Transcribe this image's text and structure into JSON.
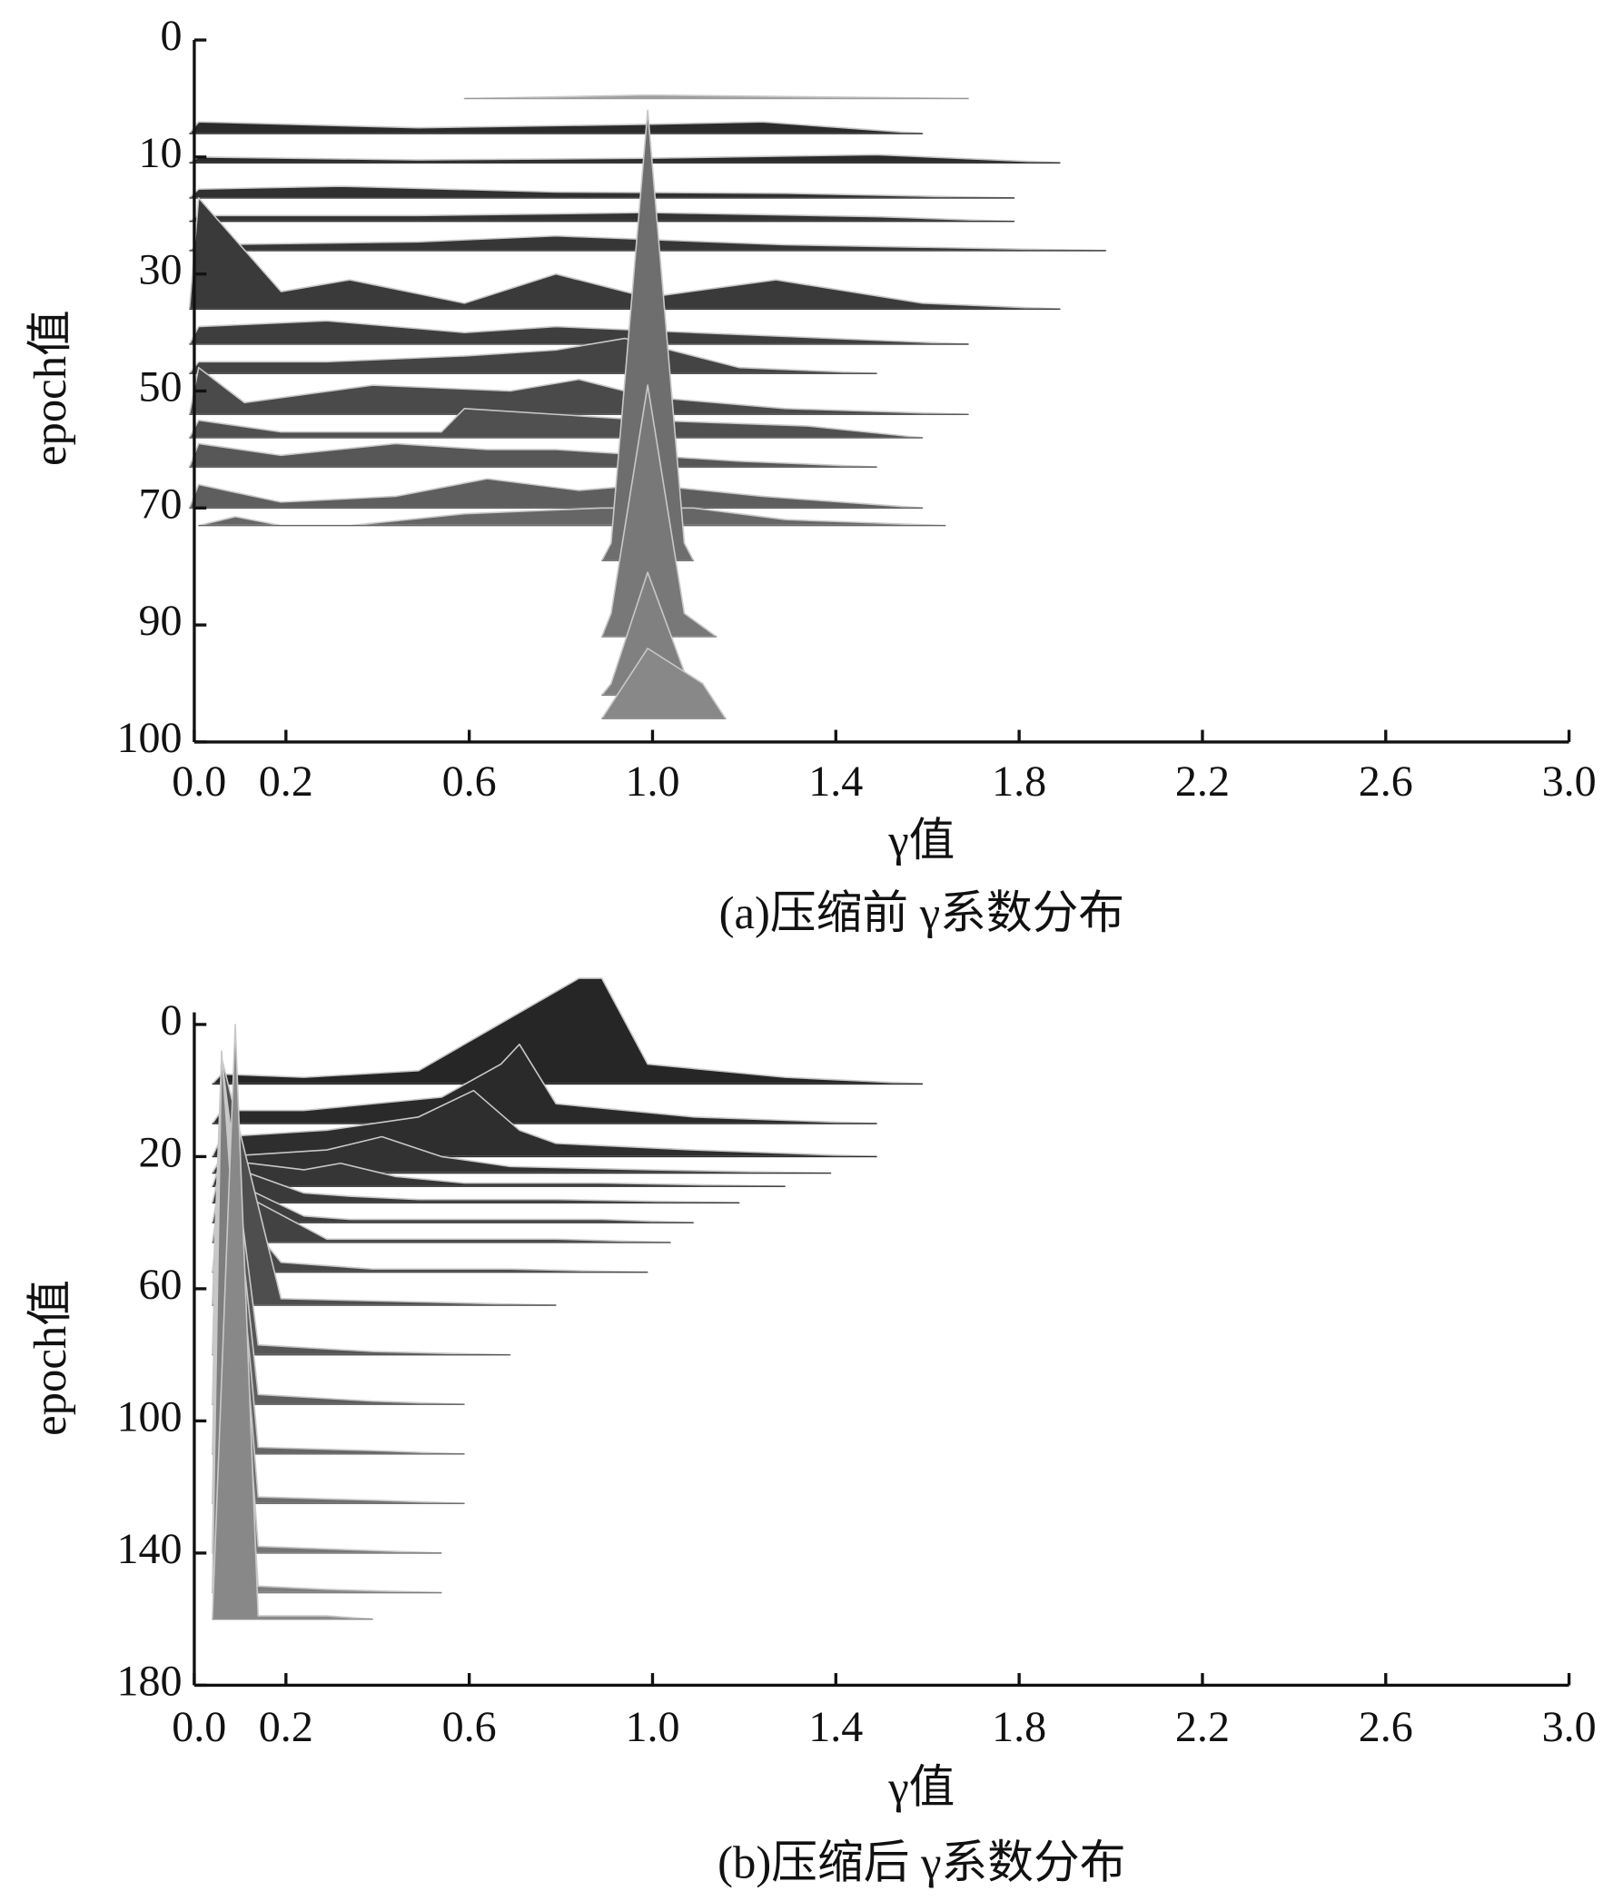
{
  "chart_data": [
    {
      "type": "ridgeline",
      "xlabel": "γ值",
      "ylabel": "epoch值",
      "caption": "(a)压缩前 γ系数分布",
      "xlim": [
        0,
        3.0
      ],
      "xticks": [
        {
          "value": 0,
          "label": "0.0"
        },
        0.2,
        0.6,
        {
          "value": 1,
          "label": "1.0"
        },
        1.4,
        1.8,
        2.2,
        2.6,
        {
          "value": 3,
          "label": "3.0"
        }
      ],
      "ylim": [
        0,
        100
      ],
      "yticks": [
        0,
        10,
        30,
        50,
        70,
        90,
        100
      ],
      "series": [
        {
          "epoch": 5,
          "color": "#9a9a9a",
          "x": [
            0.6,
            1.0,
            1.7
          ],
          "values": [
            0,
            0.3,
            0
          ]
        },
        {
          "epoch": 8,
          "color": "#2b2b2b",
          "x": [
            0.0,
            0.02,
            0.5,
            1.0,
            1.25,
            1.6
          ],
          "values": [
            0,
            1,
            0.5,
            0.8,
            1,
            0
          ]
        },
        {
          "epoch": 11,
          "color": "#2b2b2b",
          "x": [
            0.0,
            0.02,
            0.5,
            1.0,
            1.5,
            1.9
          ],
          "values": [
            0,
            1,
            0.5,
            0.8,
            1.2,
            0
          ]
        },
        {
          "epoch": 17,
          "color": "#303030",
          "x": [
            0.0,
            0.02,
            0.33,
            0.8,
            1.3,
            1.8
          ],
          "values": [
            0,
            1.5,
            2,
            1,
            0.8,
            0
          ]
        },
        {
          "epoch": 21,
          "color": "#333333",
          "x": [
            0.0,
            0.02,
            0.5,
            1.0,
            1.5,
            1.8
          ],
          "values": [
            0,
            1,
            1,
            1.5,
            0.8,
            0
          ]
        },
        {
          "epoch": 26,
          "color": "#363636",
          "x": [
            0.0,
            0.02,
            0.5,
            0.8,
            1.3,
            2.0
          ],
          "values": [
            0,
            1,
            1.5,
            2.5,
            1,
            0
          ]
        },
        {
          "epoch": 36,
          "color": "#3a3a3a",
          "x": [
            0.0,
            0.02,
            0.2,
            0.35,
            0.6,
            0.8,
            1.0,
            1.28,
            1.6,
            1.9
          ],
          "values": [
            0,
            19,
            3,
            5,
            1,
            6,
            2,
            5,
            1,
            0
          ]
        },
        {
          "epoch": 42,
          "color": "#3e3e3e",
          "x": [
            0.0,
            0.02,
            0.3,
            0.6,
            0.8,
            1.1,
            1.4,
            1.7
          ],
          "values": [
            0,
            3,
            4,
            2,
            3,
            2,
            1,
            0
          ]
        },
        {
          "epoch": 47,
          "color": "#444444",
          "x": [
            0.0,
            0.02,
            0.3,
            0.6,
            0.8,
            0.95,
            1.2,
            1.5
          ],
          "values": [
            0,
            2,
            2,
            3,
            4,
            6,
            1,
            0
          ]
        },
        {
          "epoch": 54,
          "color": "#4a4a4a",
          "x": [
            0.0,
            0.02,
            0.12,
            0.4,
            0.7,
            0.85,
            1.0,
            1.3,
            1.7
          ],
          "values": [
            0,
            8,
            2,
            5,
            4,
            6,
            3,
            1,
            0
          ]
        },
        {
          "epoch": 58,
          "color": "#505050",
          "x": [
            0.0,
            0.02,
            0.2,
            0.55,
            0.6,
            0.8,
            1.0,
            1.35,
            1.6
          ],
          "values": [
            0,
            3,
            1,
            1,
            5,
            4,
            3,
            2,
            0
          ]
        },
        {
          "epoch": 63,
          "color": "#575757",
          "x": [
            0.0,
            0.02,
            0.2,
            0.45,
            0.65,
            0.8,
            1.0,
            1.2,
            1.5
          ],
          "values": [
            0,
            4,
            2,
            4,
            3,
            3,
            2,
            1,
            0
          ]
        },
        {
          "epoch": 70,
          "color": "#5e5e5e",
          "x": [
            0.0,
            0.02,
            0.2,
            0.45,
            0.65,
            0.85,
            1.0,
            1.25,
            1.6
          ],
          "values": [
            0,
            4,
            1,
            2,
            5,
            3,
            4,
            2,
            0
          ]
        },
        {
          "epoch": 73,
          "color": "#666666",
          "x": [
            0.02,
            0.1,
            0.2,
            0.35,
            0.6,
            0.9,
            1.1,
            1.3,
            1.65
          ],
          "values": [
            0,
            1.5,
            0,
            0,
            2,
            3,
            3,
            1,
            0
          ]
        },
        {
          "epoch": 79,
          "color": "#6e6e6e",
          "x": [
            0.9,
            0.92,
            1.0,
            1.08,
            1.1
          ],
          "values": [
            0,
            3,
            73,
            3,
            0
          ]
        },
        {
          "epoch": 91,
          "color": "#787878",
          "x": [
            0.9,
            0.92,
            1.0,
            1.08,
            1.15
          ],
          "values": [
            0,
            3,
            42,
            3,
            0
          ]
        },
        {
          "epoch": 96,
          "color": "#808080",
          "x": [
            0.9,
            0.92,
            1.0,
            1.08,
            1.1
          ],
          "values": [
            0,
            1,
            15,
            2,
            0
          ]
        },
        {
          "epoch": 98,
          "color": "#888888",
          "x": [
            0.9,
            1.0,
            1.12,
            1.17
          ],
          "values": [
            0,
            6,
            3,
            0
          ]
        }
      ]
    },
    {
      "type": "ridgeline",
      "xlabel": "γ值",
      "ylabel": "epoch值",
      "caption": "(b)压缩后 γ系数分布",
      "xlim": [
        0,
        3.0
      ],
      "xticks": [
        {
          "value": 0,
          "label": "0.0"
        },
        0.2,
        0.6,
        {
          "value": 1,
          "label": "1.0"
        },
        1.4,
        1.8,
        2.2,
        2.6,
        {
          "value": 3,
          "label": "3.0"
        }
      ],
      "ylim": [
        0,
        180
      ],
      "yticks": [
        0,
        20,
        60,
        100,
        140,
        180
      ],
      "series": [
        {
          "epoch": 9,
          "color": "#262626",
          "x": [
            0.05,
            0.07,
            0.25,
            0.5,
            0.85,
            0.9,
            1.0,
            1.3,
            1.6
          ],
          "values": [
            0,
            1.5,
            1,
            2,
            16,
            16,
            3,
            1,
            0
          ]
        },
        {
          "epoch": 15,
          "color": "#2a2a2a",
          "x": [
            0.05,
            0.07,
            0.25,
            0.55,
            0.68,
            0.72,
            0.8,
            1.1,
            1.5
          ],
          "values": [
            0,
            2,
            2,
            4,
            9,
            12,
            3,
            1,
            0
          ]
        },
        {
          "epoch": 20,
          "color": "#2e2e2e",
          "x": [
            0.05,
            0.07,
            0.3,
            0.5,
            0.62,
            0.72,
            0.8,
            1.1,
            1.5
          ],
          "values": [
            0,
            3,
            4,
            6,
            10,
            4,
            2,
            1,
            0
          ]
        },
        {
          "epoch": 25,
          "color": "#323232",
          "x": [
            0.05,
            0.07,
            0.3,
            0.42,
            0.55,
            0.7,
            1.0,
            1.4
          ],
          "values": [
            0,
            5,
            6,
            8,
            5,
            2,
            1,
            0
          ]
        },
        {
          "epoch": 29,
          "color": "#363636",
          "x": [
            0.05,
            0.07,
            0.25,
            0.33,
            0.45,
            0.6,
            0.9,
            1.3
          ],
          "values": [
            0,
            8,
            5,
            7,
            3,
            1,
            1,
            0
          ]
        },
        {
          "epoch": 34,
          "color": "#3a3a3a",
          "x": [
            0.05,
            0.07,
            0.25,
            0.35,
            0.5,
            0.8,
            1.2
          ],
          "values": [
            0,
            12,
            3,
            2,
            1,
            1,
            0
          ]
        },
        {
          "epoch": 40,
          "color": "#3e3e3e",
          "x": [
            0.05,
            0.07,
            0.25,
            0.35,
            0.6,
            0.9,
            1.1
          ],
          "values": [
            0,
            14,
            2,
            1,
            1,
            1,
            0
          ]
        },
        {
          "epoch": 46,
          "color": "#424242",
          "x": [
            0.05,
            0.07,
            0.3,
            0.5,
            0.8,
            1.05
          ],
          "values": [
            0,
            18,
            1,
            1,
            1,
            0
          ]
        },
        {
          "epoch": 55,
          "color": "#484848",
          "x": [
            0.05,
            0.07,
            0.2,
            0.4,
            0.7,
            1.0
          ],
          "values": [
            0,
            25,
            3,
            1,
            1,
            0
          ]
        },
        {
          "epoch": 65,
          "color": "#4e4e4e",
          "x": [
            0.05,
            0.07,
            0.2,
            0.5,
            0.8
          ],
          "values": [
            0,
            60,
            2,
            1,
            0
          ]
        },
        {
          "epoch": 80,
          "color": "#565656",
          "x": [
            0.05,
            0.07,
            0.15,
            0.4,
            0.7
          ],
          "values": [
            0,
            75,
            3,
            1,
            0
          ]
        },
        {
          "epoch": 95,
          "color": "#5e5e5e",
          "x": [
            0.05,
            0.07,
            0.15,
            0.4,
            0.6
          ],
          "values": [
            0,
            90,
            3,
            1,
            0
          ]
        },
        {
          "epoch": 110,
          "color": "#666666",
          "x": [
            0.05,
            0.07,
            0.15,
            0.4,
            0.6
          ],
          "values": [
            0,
            105,
            2,
            1,
            0
          ]
        },
        {
          "epoch": 125,
          "color": "#6e6e6e",
          "x": [
            0.05,
            0.07,
            0.15,
            0.4,
            0.6
          ],
          "values": [
            0,
            120,
            2,
            1,
            0
          ]
        },
        {
          "epoch": 140,
          "color": "#767676",
          "x": [
            0.05,
            0.07,
            0.15,
            0.35,
            0.55
          ],
          "values": [
            0,
            135,
            2,
            1,
            0
          ]
        },
        {
          "epoch": 152,
          "color": "#7e7e7e",
          "x": [
            0.05,
            0.07,
            0.15,
            0.3,
            0.55
          ],
          "values": [
            0,
            148,
            2,
            1,
            0
          ]
        },
        {
          "epoch": 160,
          "color": "#888888",
          "x": [
            0.05,
            0.1,
            0.15,
            0.3,
            0.4
          ],
          "values": [
            0,
            160,
            1,
            1,
            0
          ]
        }
      ]
    }
  ]
}
